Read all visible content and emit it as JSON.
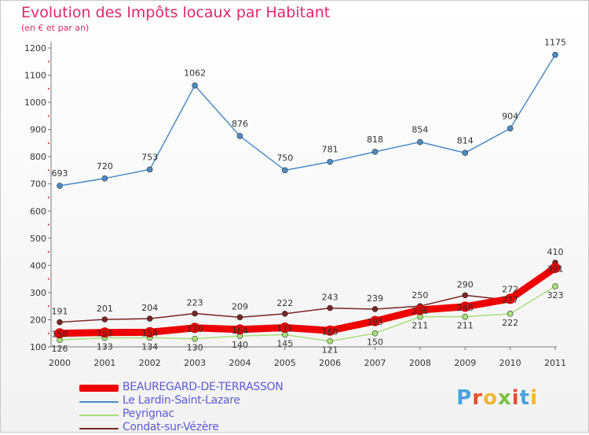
{
  "chart_data": {
    "type": "line",
    "title": "Evolution des Impôts locaux par Habitant",
    "subtitle": "(en € et par an)",
    "x": [
      2000,
      2001,
      2002,
      2003,
      2004,
      2005,
      2006,
      2007,
      2008,
      2009,
      2010,
      2011
    ],
    "ylim": [
      100,
      1200
    ],
    "yticks": [
      100,
      200,
      300,
      400,
      500,
      600,
      700,
      800,
      900,
      1000,
      1100,
      1200
    ],
    "grid": false,
    "legend_position": "bottom-left",
    "series": [
      {
        "name": "BEAUREGARD-DE-TERRASSON",
        "color": "#ee0000",
        "emphasis": true,
        "values": [
          150,
          153,
          154,
          170,
          164,
          171,
          160,
          195,
          236,
          248,
          277,
          391
        ]
      },
      {
        "name": "Le Lardin-Saint-Lazare",
        "color": "#4a8cc7",
        "values": [
          693,
          720,
          753,
          1062,
          876,
          750,
          781,
          818,
          854,
          814,
          904,
          1175
        ]
      },
      {
        "name": "Peyrignac",
        "color": "#a6e07a",
        "values": [
          126,
          133,
          134,
          130,
          140,
          145,
          121,
          150,
          211,
          211,
          222,
          323
        ]
      },
      {
        "name": "Condat-sur-Vézère",
        "color": "#7a2424",
        "values": [
          191,
          201,
          204,
          223,
          209,
          222,
          243,
          239,
          250,
          290,
          272,
          410
        ]
      }
    ]
  },
  "logo": {
    "text": "Proxiti",
    "colors": [
      "#4aa3df",
      "#e94f2e",
      "#f2b632",
      "#7ac143",
      "#e94f2e",
      "#4aa3df",
      "#f2b632"
    ]
  }
}
